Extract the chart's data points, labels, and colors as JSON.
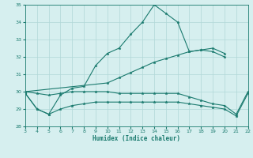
{
  "xlabel": "Humidex (Indice chaleur)",
  "x": [
    3,
    4,
    5,
    6,
    7,
    8,
    9,
    10,
    11,
    12,
    13,
    14,
    15,
    16,
    17,
    18,
    19,
    20,
    21,
    22
  ],
  "line1": [
    29.9,
    29.0,
    28.7,
    29.8,
    30.2,
    30.3,
    31.5,
    32.2,
    32.5,
    33.3,
    34.0,
    35.0,
    34.5,
    34.0,
    32.3,
    32.4,
    32.3,
    32.0,
    null,
    null
  ],
  "line2": [
    30.0,
    null,
    null,
    null,
    null,
    null,
    null,
    30.5,
    30.8,
    31.1,
    31.4,
    31.7,
    31.9,
    32.1,
    32.3,
    32.4,
    32.5,
    32.2,
    null,
    null
  ],
  "line3": [
    30.0,
    29.9,
    29.8,
    29.9,
    30.0,
    30.0,
    30.0,
    30.0,
    29.9,
    29.9,
    29.9,
    29.9,
    29.9,
    29.9,
    29.7,
    29.5,
    29.3,
    29.2,
    28.7,
    30.0
  ],
  "line4": [
    29.9,
    29.0,
    28.7,
    29.0,
    29.2,
    29.3,
    29.4,
    29.4,
    29.4,
    29.4,
    29.4,
    29.4,
    29.4,
    29.4,
    29.3,
    29.2,
    29.1,
    29.0,
    28.6,
    29.9
  ],
  "color": "#1a7a6e",
  "bg_color": "#d6efef",
  "grid_color": "#b0d8d8",
  "ylim": [
    28,
    35
  ],
  "yticks": [
    28,
    29,
    30,
    31,
    32,
    33,
    34,
    35
  ],
  "xlim": [
    3,
    22
  ],
  "xticks": [
    3,
    4,
    5,
    6,
    7,
    8,
    9,
    10,
    11,
    12,
    13,
    14,
    15,
    16,
    17,
    18,
    19,
    20,
    21,
    22
  ]
}
